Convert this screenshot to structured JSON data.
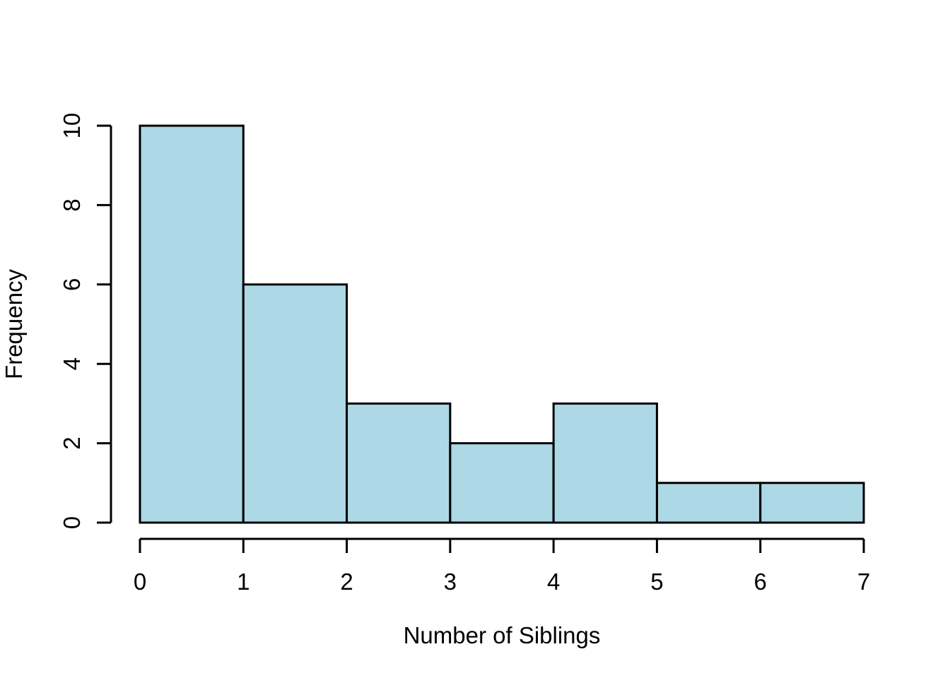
{
  "chart_data": {
    "type": "bar",
    "subtype": "histogram",
    "title": "",
    "xlabel": "Number of Siblings",
    "ylabel": "Frequency",
    "breaks": [
      0,
      1,
      2,
      3,
      4,
      5,
      6,
      7
    ],
    "counts": [
      10,
      6,
      3,
      2,
      3,
      1,
      1
    ],
    "bin_width": 1,
    "x_ticks": [
      0,
      1,
      2,
      3,
      4,
      5,
      6,
      7
    ],
    "y_ticks": [
      0,
      2,
      4,
      6,
      8,
      10
    ],
    "xlim": [
      0,
      7
    ],
    "ylim": [
      0,
      10
    ],
    "grid": false,
    "legend_position": "none",
    "colors": {
      "bar_fill": "#ADD8E6",
      "bar_stroke": "#000000",
      "axis": "#000000",
      "text": "#000000",
      "background": "#FFFFFF"
    }
  }
}
